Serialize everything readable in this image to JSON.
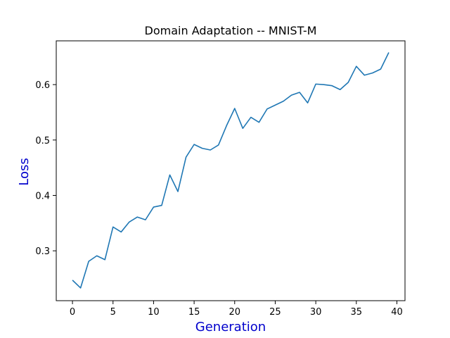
{
  "chart_data": {
    "type": "line",
    "title": "Domain Adaptation -- MNIST-M",
    "xlabel": "Generation",
    "ylabel": "Loss",
    "label_color": "#0000cc",
    "series_color": "#1f77b4",
    "xlim": [
      -2,
      41
    ],
    "ylim": [
      0.21,
      0.679
    ],
    "xticks": [
      0,
      5,
      10,
      15,
      20,
      25,
      30,
      35,
      40
    ],
    "xtick_labels": [
      "0",
      "5",
      "10",
      "15",
      "20",
      "25",
      "30",
      "35",
      "40"
    ],
    "yticks": [
      0.3,
      0.4,
      0.5,
      0.6
    ],
    "ytick_labels": [
      "0.3",
      "0.4",
      "0.5",
      "0.6"
    ],
    "grid": false,
    "series": [
      {
        "x": [
          0,
          1,
          2,
          3,
          4,
          5,
          6,
          7,
          8,
          9,
          10,
          11,
          12,
          13,
          14,
          15,
          16,
          17,
          18,
          19,
          20,
          21,
          22,
          23,
          24,
          25,
          26,
          27,
          28,
          29,
          30,
          31,
          32,
          33,
          34,
          35,
          36,
          37,
          38,
          39
        ],
        "values": [
          0.247,
          0.233,
          0.281,
          0.291,
          0.284,
          0.343,
          0.334,
          0.352,
          0.361,
          0.356,
          0.379,
          0.382,
          0.437,
          0.407,
          0.469,
          0.492,
          0.485,
          0.482,
          0.491,
          0.526,
          0.557,
          0.521,
          0.541,
          0.532,
          0.556,
          0.563,
          0.57,
          0.581,
          0.586,
          0.567,
          0.601,
          0.6,
          0.598,
          0.591,
          0.604,
          0.633,
          0.617,
          0.621,
          0.628,
          0.658
        ]
      }
    ]
  }
}
